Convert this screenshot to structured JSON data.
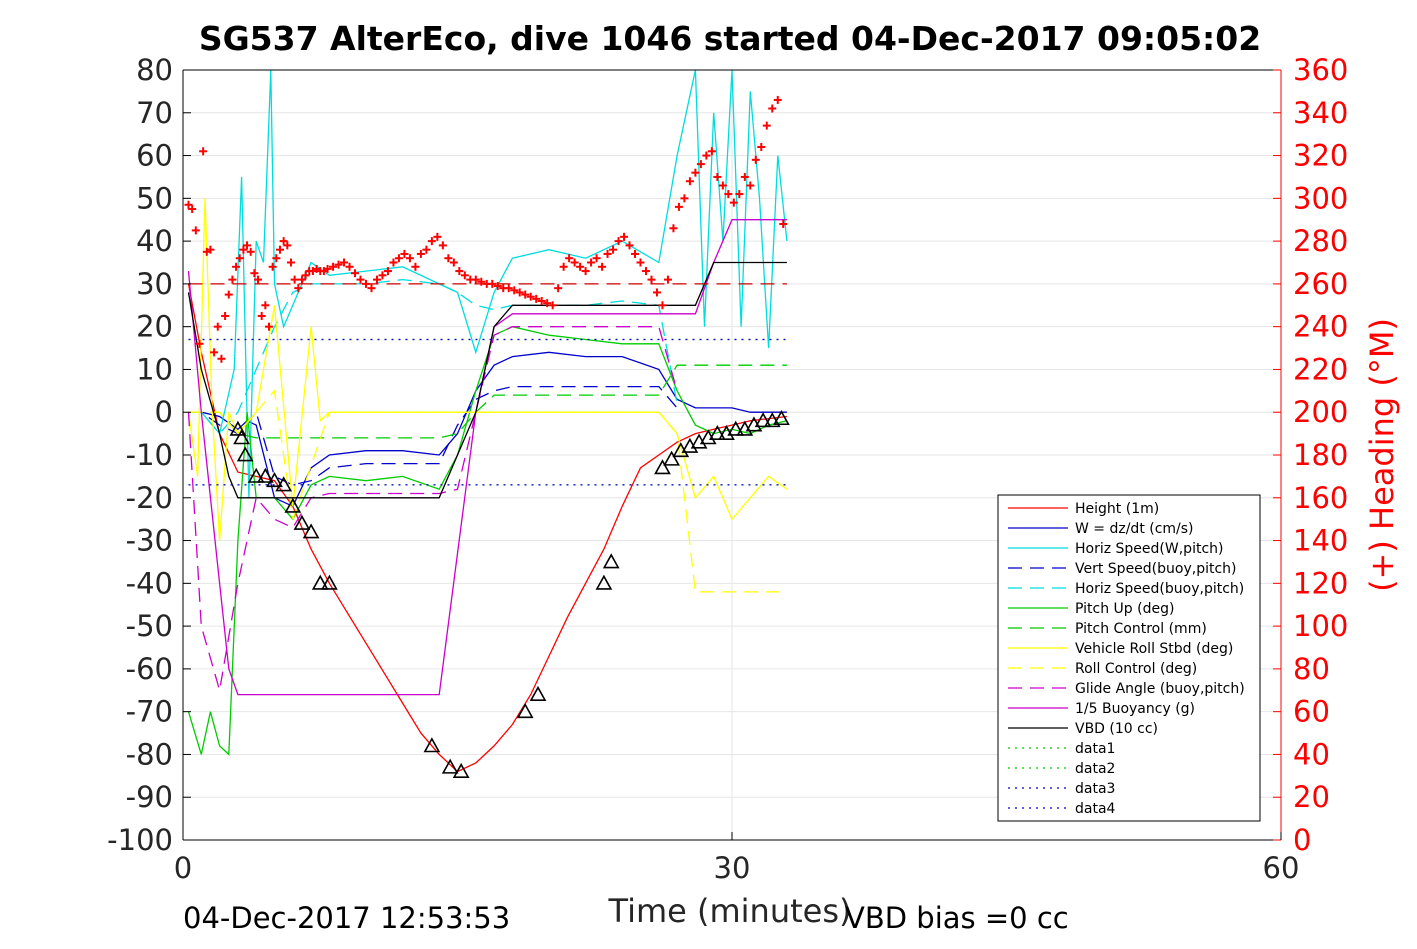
{
  "chart_data": {
    "type": "line",
    "title": "SG537 AlterEco, dive 1046 started 04-Dec-2017 09:05:02",
    "xlabel": "Time (minutes)",
    "ylabel_right": "(+) Heading (°M)",
    "xlim": [
      0,
      60
    ],
    "ylim_left": [
      -100,
      80
    ],
    "ylim_right": [
      0,
      360
    ],
    "x_ticks": [
      "0",
      "30",
      "60"
    ],
    "y_ticks_left": [
      "80",
      "70",
      "60",
      "50",
      "40",
      "30",
      "20",
      "10",
      "0",
      "-10",
      "-20",
      "-30",
      "-40",
      "-50",
      "-60",
      "-70",
      "-80",
      "-90",
      "-100"
    ],
    "y_ticks_right": [
      "360",
      "340",
      "320",
      "300",
      "280",
      "260",
      "240",
      "220",
      "200",
      "180",
      "160",
      "140",
      "120",
      "100",
      "80",
      "60",
      "40",
      "20",
      "0"
    ],
    "grid": true,
    "legend_position": "lower-right",
    "footer_left": "04-Dec-2017 12:53:53",
    "footer_right": "VBD bias =0 cc",
    "legend": [
      {
        "label": "Height (1m)",
        "color": "#ff0000",
        "dash": "solid"
      },
      {
        "label": "W = dz/dt (cm/s)",
        "color": "#0000cc",
        "dash": "solid"
      },
      {
        "label": "Horiz Speed(W,pitch)",
        "color": "#00dddd",
        "dash": "solid"
      },
      {
        "label": "Vert Speed(buoy,pitch)",
        "color": "#0000cc",
        "dash": "dashed"
      },
      {
        "label": "Horiz Speed(buoy,pitch)",
        "color": "#00dddd",
        "dash": "dashed"
      },
      {
        "label": "Pitch Up (deg)",
        "color": "#00cc00",
        "dash": "solid"
      },
      {
        "label": "Pitch Control (mm)",
        "color": "#00cc00",
        "dash": "dashed"
      },
      {
        "label": "Vehicle Roll Stbd (deg)",
        "color": "#ffff00",
        "dash": "solid"
      },
      {
        "label": "Roll Control (deg)",
        "color": "#ffff00",
        "dash": "dashed"
      },
      {
        "label": "Glide Angle (buoy,pitch)",
        "color": "#cc00cc",
        "dash": "dashed"
      },
      {
        "label": "1/5 Buoyancy (g)",
        "color": "#cc00cc",
        "dash": "solid"
      },
      {
        "label": "VBD (10 cc)",
        "color": "#000000",
        "dash": "solid"
      },
      {
        "label": "data1",
        "color": "#00cc00",
        "dash": "dotted"
      },
      {
        "label": "data2",
        "color": "#00cc00",
        "dash": "dotted"
      },
      {
        "label": "data3",
        "color": "#0000cc",
        "dash": "dotted"
      },
      {
        "label": "data4",
        "color": "#0000cc",
        "dash": "dotted"
      }
    ],
    "series": [
      {
        "name": "Height (1m)",
        "color": "#ff0000",
        "dash": "solid",
        "axis": "left",
        "x": [
          0.3,
          1,
          2,
          3,
          4,
          5,
          6,
          7,
          8,
          9,
          10,
          11,
          12,
          13,
          14,
          15,
          16,
          17,
          18,
          19,
          20,
          21,
          22,
          23,
          24,
          25,
          26,
          27,
          28,
          29,
          30,
          31,
          32,
          33
        ],
        "y": [
          30,
          14,
          -5,
          -14,
          -15,
          -16,
          -22,
          -32,
          -40,
          -47,
          -54,
          -61,
          -68,
          -75,
          -80,
          -84,
          -82,
          -78,
          -73,
          -66,
          -57,
          -48,
          -40,
          -32,
          -22,
          -13,
          -10,
          -7,
          -5,
          -4,
          -3,
          -2,
          -1.5,
          -1
        ]
      },
      {
        "name": "W = dz/dt (cm/s)",
        "color": "#0000cc",
        "dash": "solid",
        "axis": "left",
        "x": [
          0.3,
          1,
          2,
          3,
          3.5,
          4,
          5,
          6,
          7,
          8,
          10,
          12,
          14,
          15,
          16,
          17,
          18,
          20,
          22,
          24,
          26,
          27,
          28,
          29,
          30,
          31,
          32,
          33
        ],
        "y": [
          0,
          0,
          -1,
          -4,
          -2,
          -3,
          -20,
          -22,
          -13,
          -10,
          -9,
          -9,
          -10,
          -5,
          5,
          11,
          13,
          14,
          13,
          13,
          10,
          3,
          1,
          1,
          1,
          0,
          0,
          0
        ]
      },
      {
        "name": "Horiz Speed(W,pitch)",
        "color": "#00dddd",
        "dash": "solid",
        "axis": "left",
        "x": [
          0.3,
          1,
          2,
          2.8,
          3.2,
          3.6,
          4,
          4.4,
          4.8,
          5,
          5.5,
          6,
          7,
          8,
          10,
          12,
          14,
          15,
          16,
          17,
          18,
          20,
          22,
          24,
          26,
          27,
          28,
          28.5,
          29,
          29.5,
          30,
          30.5,
          31,
          31.5,
          32,
          32.5,
          33
        ],
        "y": [
          0,
          0,
          -5,
          10,
          55,
          -20,
          40,
          35,
          80,
          30,
          20,
          25,
          35,
          32,
          33,
          34,
          30,
          28,
          14,
          28,
          36,
          38,
          36,
          40,
          35,
          60,
          80,
          20,
          70,
          40,
          80,
          20,
          75,
          50,
          15,
          60,
          40
        ]
      },
      {
        "name": "Vert Speed(buoy,pitch)",
        "color": "#0000cc",
        "dash": "dashed",
        "axis": "left",
        "x": [
          0.3,
          1,
          2,
          3,
          4,
          5,
          6,
          7,
          8,
          10,
          12,
          14,
          15,
          16,
          17,
          18,
          20,
          22,
          24,
          26,
          27
        ],
        "y": [
          0,
          0,
          -3,
          -5,
          0,
          -15,
          -17,
          -16,
          -13,
          -12,
          -12,
          -12,
          -3,
          3,
          5,
          6,
          6,
          6,
          6,
          6,
          1
        ]
      },
      {
        "name": "Horiz Speed(buoy,pitch)",
        "color": "#00dddd",
        "dash": "dashed",
        "axis": "left",
        "x": [
          0.3,
          1,
          2,
          3,
          4,
          5,
          6,
          7,
          8,
          10,
          12,
          14,
          15,
          16,
          17,
          18,
          20,
          22,
          24,
          26,
          27
        ],
        "y": [
          0,
          0,
          -5,
          0,
          10,
          20,
          28,
          30,
          30,
          30,
          31,
          30,
          28,
          25,
          24,
          25,
          25,
          25,
          26,
          25,
          2
        ]
      },
      {
        "name": "Pitch Up (deg)",
        "color": "#00cc00",
        "dash": "solid",
        "axis": "left",
        "x": [
          0.3,
          1,
          1.5,
          2,
          2.5,
          3,
          3.5,
          4,
          5,
          6,
          7,
          8,
          10,
          12,
          14,
          15,
          16,
          17,
          18,
          20,
          22,
          24,
          26,
          27,
          28,
          29,
          30,
          31,
          32,
          33
        ],
        "y": [
          -70,
          -80,
          -70,
          -78,
          -80,
          -30,
          0,
          -20,
          -20,
          -25,
          -17,
          -15,
          -16,
          -15,
          -18,
          -10,
          5,
          18,
          20,
          18,
          17,
          16,
          16,
          5,
          -3,
          -5,
          -4,
          -5,
          -3,
          -2
        ]
      },
      {
        "name": "Pitch Control (mm)",
        "color": "#00cc00",
        "dash": "dashed",
        "axis": "left",
        "x": [
          0.3,
          2,
          3,
          4,
          6,
          8,
          10,
          12,
          14,
          15,
          16,
          17,
          20,
          24,
          26,
          27,
          30,
          33
        ],
        "y": [
          0,
          0,
          -5,
          -6,
          -6,
          -6,
          -6,
          -6,
          -6,
          -5,
          0,
          4,
          4,
          4,
          4,
          11,
          11,
          11
        ]
      },
      {
        "name": "Vehicle Roll Stbd (deg)",
        "color": "#ffff00",
        "dash": "solid",
        "axis": "left",
        "x": [
          0.3,
          0.8,
          1.2,
          1.6,
          2,
          2.5,
          3,
          4,
          5,
          6,
          7,
          7.5,
          8,
          10,
          12,
          14,
          15,
          16,
          18,
          20,
          22,
          24,
          26,
          27,
          28,
          29,
          30,
          31,
          32,
          33
        ],
        "y": [
          0,
          -15,
          50,
          0,
          -30,
          0,
          -5,
          0,
          25,
          -22,
          20,
          -2,
          0,
          0,
          0,
          0,
          0,
          0,
          0,
          0,
          0,
          0,
          0,
          -5,
          -20,
          -15,
          -25,
          -20,
          -15,
          -18
        ]
      },
      {
        "name": "Roll Control (deg)",
        "color": "#ffff00",
        "dash": "dashed",
        "axis": "left",
        "x": [
          0.3,
          2,
          3,
          5,
          6,
          8,
          10,
          14,
          16,
          20,
          24,
          26,
          27,
          28,
          30,
          33
        ],
        "y": [
          0,
          0,
          -5,
          5,
          -25,
          0,
          0,
          0,
          0,
          0,
          0,
          0,
          -5,
          -42,
          -42,
          -42
        ]
      },
      {
        "name": "Glide Angle (buoy,pitch)",
        "color": "#cc00cc",
        "dash": "dashed",
        "axis": "left",
        "x": [
          0.3,
          1,
          2,
          3,
          4,
          5,
          6,
          7,
          8,
          10,
          12,
          14,
          15,
          16,
          17,
          18,
          20,
          22,
          24,
          26,
          27
        ],
        "y": [
          0,
          -50,
          -65,
          -40,
          -20,
          -25,
          -27,
          -20,
          -19,
          -19,
          -19,
          -19,
          -18,
          0,
          18,
          20,
          20,
          20,
          20,
          20,
          5
        ]
      },
      {
        "name": "1/5 Buoyancy (g)",
        "color": "#cc00cc",
        "dash": "solid",
        "axis": "left",
        "x": [
          0.3,
          1,
          2,
          2.5,
          3,
          4,
          6,
          8,
          10,
          12,
          14,
          16,
          17,
          18,
          20,
          24,
          26,
          27,
          28,
          29,
          30,
          33
        ],
        "y": [
          33,
          0,
          -40,
          -60,
          -66,
          -66,
          -66,
          -66,
          -66,
          -66,
          -66,
          0,
          20,
          23,
          23,
          23,
          23,
          23,
          23,
          35,
          45,
          45
        ]
      },
      {
        "name": "VBD (10 cc)",
        "color": "#000000",
        "dash": "solid",
        "axis": "left",
        "x": [
          0.3,
          1,
          2,
          2.5,
          3,
          5,
          8,
          10,
          12,
          14,
          15,
          16,
          17,
          18,
          20,
          24,
          26,
          27,
          28,
          29,
          30,
          33
        ],
        "y": [
          28,
          10,
          -5,
          -15,
          -20,
          -20,
          -20,
          -20,
          -20,
          -20,
          -10,
          0,
          20,
          25,
          25,
          25,
          25,
          25,
          25,
          35,
          35,
          35
        ]
      },
      {
        "name": "data1",
        "color": "#00cc00",
        "dash": "dotted",
        "axis": "left",
        "x": [
          0.3,
          33
        ],
        "y": [
          17,
          17
        ]
      },
      {
        "name": "data2",
        "color": "#00cc00",
        "dash": "dotted",
        "axis": "left",
        "x": [
          0.3,
          33
        ],
        "y": [
          -17,
          -17
        ]
      },
      {
        "name": "data3",
        "color": "#0000cc",
        "dash": "dotted",
        "axis": "left",
        "x": [
          0.3,
          33
        ],
        "y": [
          17,
          17
        ]
      },
      {
        "name": "data4",
        "color": "#0000cc",
        "dash": "dotted",
        "axis": "left",
        "x": [
          0.3,
          33
        ],
        "y": [
          -17,
          -17
        ]
      },
      {
        "name": "",
        "color": "#cc0000",
        "dash": "dashed",
        "axis": "left",
        "x": [
          0.3,
          33
        ],
        "y": [
          30,
          30
        ]
      }
    ],
    "heading_points": {
      "color": "#ff0000",
      "x": [
        0.3,
        0.5,
        0.7,
        0.9,
        1.1,
        1.3,
        1.5,
        1.7,
        1.9,
        2.1,
        2.3,
        2.5,
        2.7,
        2.9,
        3.1,
        3.3,
        3.5,
        3.7,
        3.9,
        4.1,
        4.3,
        4.5,
        4.7,
        4.9,
        5.1,
        5.3,
        5.5,
        5.7,
        5.9,
        6.1,
        6.3,
        6.5,
        6.7,
        6.9,
        7.1,
        7.3,
        7.5,
        7.7,
        7.9,
        8.2,
        8.5,
        8.8,
        9.1,
        9.4,
        9.7,
        10,
        10.3,
        10.6,
        10.9,
        11.2,
        11.5,
        11.8,
        12.1,
        12.4,
        12.7,
        13,
        13.3,
        13.6,
        13.9,
        14.2,
        14.5,
        14.8,
        15.1,
        15.4,
        15.7,
        16,
        16.3,
        16.6,
        16.9,
        17.2,
        17.5,
        17.8,
        18.1,
        18.4,
        18.7,
        19,
        19.3,
        19.6,
        19.9,
        20.2,
        20.5,
        20.8,
        21.1,
        21.4,
        21.7,
        22,
        22.3,
        22.6,
        22.9,
        23.2,
        23.5,
        23.8,
        24.1,
        24.4,
        24.7,
        25,
        25.3,
        25.6,
        25.9,
        26.2,
        26.5,
        26.8,
        27.1,
        27.4,
        27.7,
        28,
        28.3,
        28.6,
        28.9,
        29.2,
        29.5,
        29.8,
        30.1,
        30.4,
        30.7,
        31,
        31.3,
        31.6,
        31.9,
        32.2,
        32.5,
        32.8
      ],
      "y": [
        297,
        295,
        285,
        232,
        322,
        275,
        276,
        228,
        240,
        225,
        245,
        255,
        262,
        268,
        272,
        276,
        278,
        275,
        265,
        262,
        245,
        250,
        240,
        268,
        272,
        276,
        280,
        278,
        270,
        262,
        258,
        262,
        264,
        266,
        266,
        267,
        266,
        266,
        267,
        268,
        269,
        270,
        268,
        265,
        262,
        260,
        258,
        262,
        264,
        266,
        270,
        272,
        274,
        272,
        268,
        274,
        276,
        280,
        282,
        278,
        272,
        270,
        266,
        264,
        262,
        262,
        261,
        260,
        260,
        259,
        258,
        258,
        257,
        256,
        255,
        254,
        253,
        252,
        251,
        250,
        258,
        268,
        272,
        270,
        268,
        266,
        270,
        272,
        268,
        274,
        276,
        280,
        282,
        278,
        274,
        270,
        266,
        262,
        256,
        250,
        262,
        286,
        296,
        300,
        308,
        312,
        316,
        320,
        322,
        310,
        306,
        302,
        298,
        302,
        310,
        306,
        318,
        324,
        334,
        342,
        346,
        288
      ],
      "first_marker_offset_comment": ""
    },
    "triangle_markers": {
      "x": [
        3,
        3.2,
        3.4,
        4,
        4.5,
        5,
        5.5,
        6,
        6.5,
        7,
        7.5,
        8,
        13.6,
        14.6,
        15.2,
        18.7,
        19.4,
        23,
        23.4,
        26.2,
        26.7,
        27.2,
        27.7,
        28.2,
        28.7,
        29.2,
        29.7,
        30.2,
        30.7,
        31.2,
        31.7,
        32.2,
        32.7
      ],
      "y": [
        -4,
        -6,
        -10,
        -15,
        -15,
        -16,
        -17,
        -22,
        -26,
        -28,
        -40,
        -40,
        -78,
        -83,
        -84,
        -70,
        -66,
        -40,
        -35,
        -13,
        -11,
        -9,
        -8,
        -7,
        -6,
        -5,
        -5,
        -4,
        -4,
        -3,
        -2,
        -2,
        -1.5
      ]
    }
  }
}
